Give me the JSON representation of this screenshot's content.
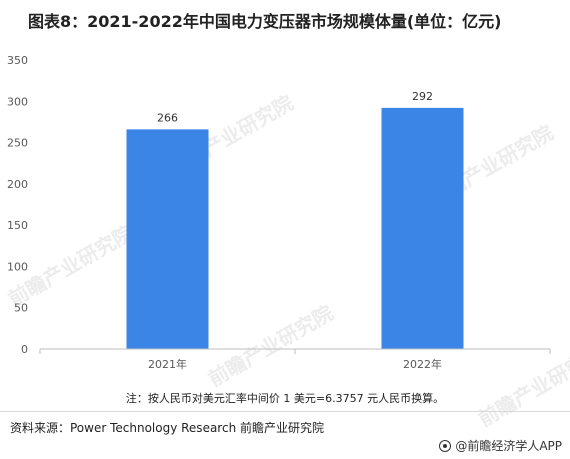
{
  "title": "图表8：2021-2022年中国电力变压器市场规模体量(单位：亿元)",
  "note": "注：按人民币对美元汇率中间价 1 美元=6.3757 元人民币换算。",
  "source": "资料来源：Power Technology Research 前瞻产业研究院",
  "brand": "@前瞻经济学人APP",
  "watermark": "前瞻产业研究院",
  "colors": {
    "bar": "#3a85e6",
    "axis": "#bfbfbf"
  },
  "chart_data": {
    "type": "bar",
    "categories": [
      "2021年",
      "2022年"
    ],
    "values": [
      266,
      292
    ],
    "ylim": [
      0,
      350
    ],
    "yticks": [
      0,
      50,
      100,
      150,
      200,
      250,
      300,
      350
    ],
    "title": "图表8：2021-2022年中国电力变压器市场规模体量(单位：亿元)",
    "xlabel": "",
    "ylabel": "",
    "grid": false,
    "data_labels": true
  }
}
